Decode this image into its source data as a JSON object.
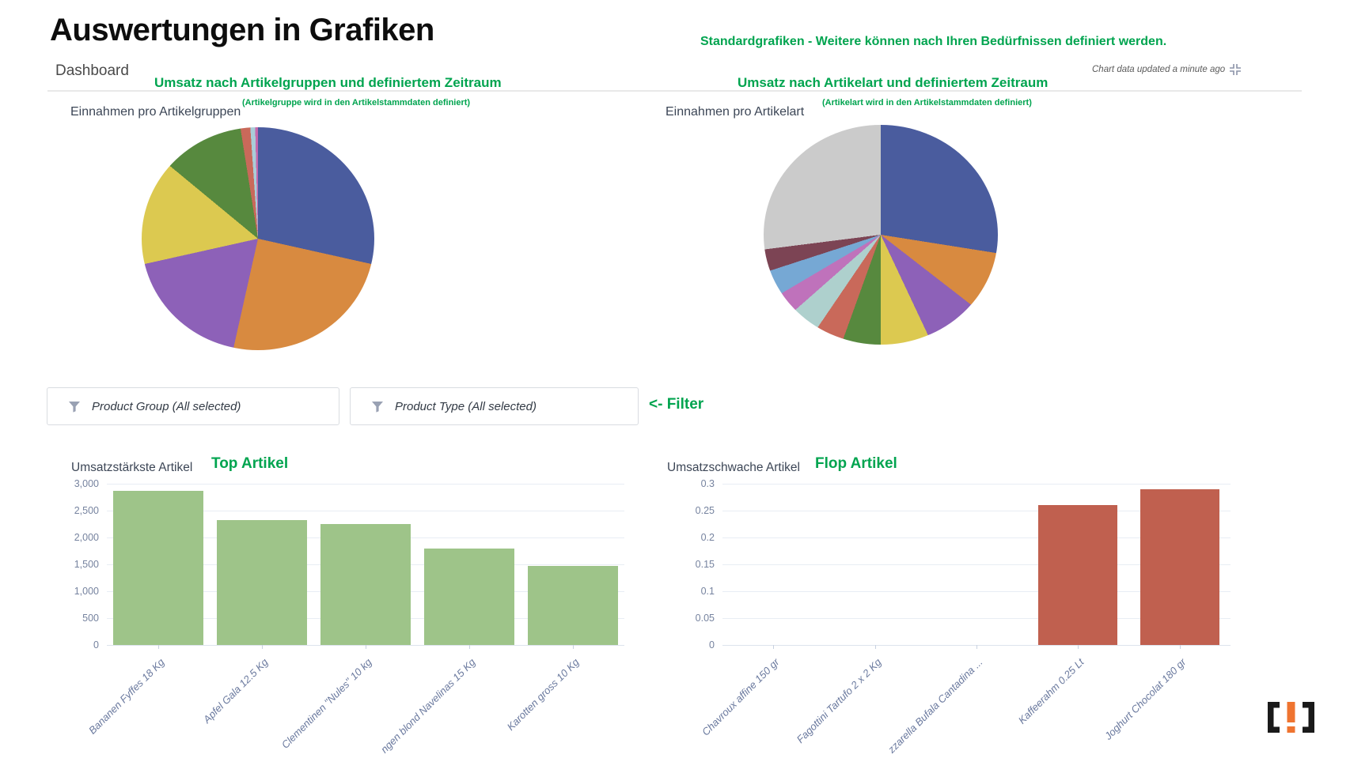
{
  "page": {
    "title": "Auswertungen in Grafiken",
    "subtitle_right": "Standardgrafiken - Weitere können nach Ihren Bedürfnissen definiert werden.",
    "accent_green": "#00a44f"
  },
  "dashboard": {
    "label": "Dashboard",
    "updated_note": "Chart data updated a minute ago"
  },
  "annotations": {
    "left_pie_heading": "Umsatz nach Artikelgruppen und definiertem Zeitraum",
    "right_pie_heading": "Umsatz nach Artikelart und definiertem Zeitraum",
    "left_pie_note": "(Artikelgruppe wird in den Artikelstammdaten definiert)",
    "right_pie_note": "(Artikelart wird in den Artikelstammdaten definiert)",
    "filter_pointer": "<- Filter",
    "top_label": "Top Artikel",
    "flop_label": "Flop Artikel"
  },
  "filters": [
    {
      "label": "Product Group (All selected)"
    },
    {
      "label": "Product Type (All selected)"
    }
  ],
  "logo_colors": {
    "bracket": "#1a1a1a",
    "exclamation": "#ef7430"
  },
  "chart_data": [
    {
      "type": "pie",
      "title": "Einnahmen pro Artikelgruppen",
      "labels_visible": false,
      "legend": false,
      "segments": [
        {
          "color": "#4a5c9e",
          "value": 28.5
        },
        {
          "color": "#d88a40",
          "value": 25.0
        },
        {
          "color": "#8d61b8",
          "value": 18.0
        },
        {
          "color": "#dcc950",
          "value": 14.5
        },
        {
          "color": "#57893e",
          "value": 11.5
        },
        {
          "color": "#c9695a",
          "value": 1.4
        },
        {
          "color": "#a9cdd8",
          "value": 0.7
        },
        {
          "color": "#c569ad",
          "value": 0.4
        }
      ]
    },
    {
      "type": "pie",
      "title": "Einnahmen pro Artikelart",
      "labels_visible": false,
      "legend": false,
      "segments": [
        {
          "color": "#4a5c9e",
          "value": 27.5
        },
        {
          "color": "#d88a40",
          "value": 8.0
        },
        {
          "color": "#8d61b8",
          "value": 7.5
        },
        {
          "color": "#dcc950",
          "value": 7.0
        },
        {
          "color": "#57893e",
          "value": 5.5
        },
        {
          "color": "#c9695a",
          "value": 4.0
        },
        {
          "color": "#aed0cd",
          "value": 4.0
        },
        {
          "color": "#bf72bb",
          "value": 3.0
        },
        {
          "color": "#76a8d4",
          "value": 3.5
        },
        {
          "color": "#7c4454",
          "value": 3.0
        },
        {
          "color": "#cbcbcb",
          "value": 27.0
        }
      ]
    },
    {
      "type": "bar",
      "title": "Umsatzstärkste Artikel",
      "categories": [
        "Bananen Fyffes 18 Kg",
        "Apfel Gala 12.5 Kg",
        "Clementinen \"Nules\" 10 kg",
        "ngen blond Navelinas 15 Kg",
        "Karotten gross 10 Kg"
      ],
      "values": [
        2870,
        2320,
        2250,
        1790,
        1470
      ],
      "yticks": [
        "3,000",
        "2,500",
        "2,000",
        "1,500",
        "1,000",
        "500",
        "0"
      ],
      "ylim": [
        0,
        3000
      ],
      "xlabel": "",
      "ylabel": "",
      "grid": true,
      "bar_color": "#9ec489"
    },
    {
      "type": "bar",
      "title": "Umsatzschwache Artikel",
      "categories": [
        "Chavroux affine 150 gr",
        "Fagottini Tartufo 2 x 2 Kg",
        "zzarella Bufala Cantadina ...",
        "Kaffeerahm 0.25 Lt",
        "Joghurt Chocolat 180 gr"
      ],
      "values": [
        0,
        0,
        0,
        0.26,
        0.29
      ],
      "yticks": [
        "0.3",
        "0.25",
        "0.2",
        "0.15",
        "0.1",
        "0.05",
        "0"
      ],
      "ylim": [
        0,
        0.3
      ],
      "xlabel": "",
      "ylabel": "",
      "grid": true,
      "bar_color": "#c0604f"
    }
  ]
}
